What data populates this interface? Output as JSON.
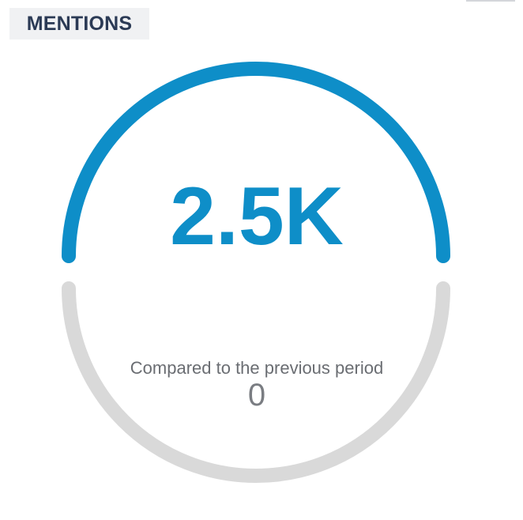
{
  "widget": {
    "title": "MENTIONS",
    "value": "2.5K",
    "compare_label": "Compared to the previous period",
    "compare_value": "0"
  },
  "gauge": {
    "fill_fraction": 0.5,
    "colors": {
      "filled": "#0e8ec8",
      "track": "#d9d9d9"
    }
  }
}
